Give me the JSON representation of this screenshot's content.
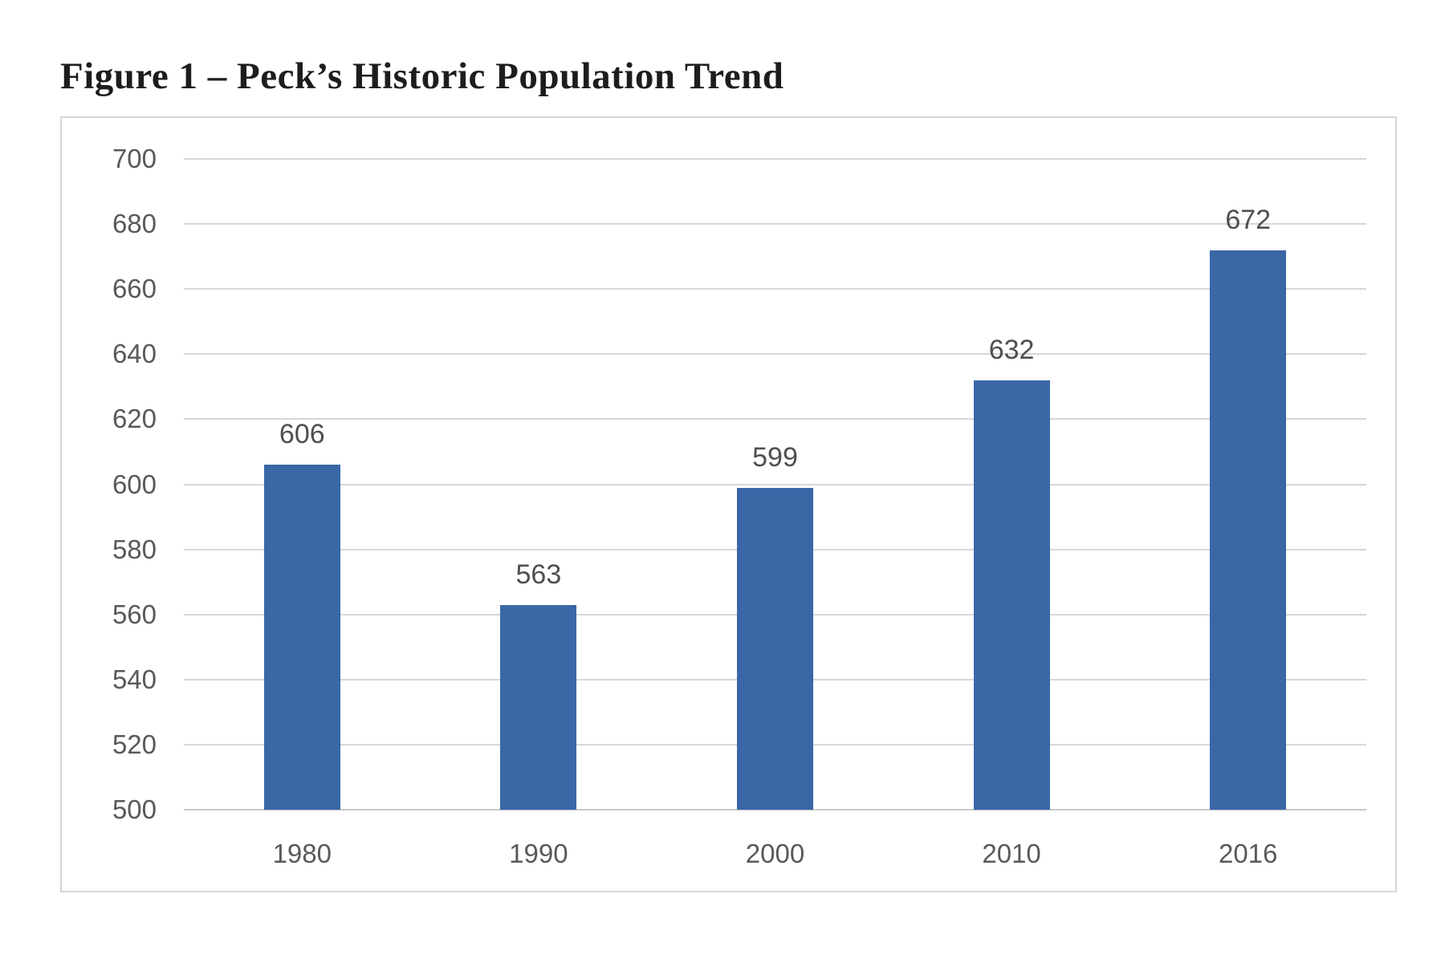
{
  "page": {
    "figure_title": "Figure 1 – Peck’s Historic Population Trend"
  },
  "chart_data": {
    "type": "bar",
    "title": "Figure 1 – Peck’s Historic Population Trend",
    "categories": [
      "1980",
      "1990",
      "2000",
      "2010",
      "2016"
    ],
    "values": [
      606,
      563,
      599,
      632,
      672
    ],
    "data_labels": [
      "606",
      "563",
      "599",
      "632",
      "672"
    ],
    "xlabel": "",
    "ylabel": "",
    "ylim": [
      500,
      700
    ],
    "yticks": [
      500,
      520,
      540,
      560,
      580,
      600,
      620,
      640,
      660,
      680,
      700
    ],
    "grid": true,
    "legend": "none",
    "bar_color": "#3a67a6",
    "gridline_color": "#d7d7d7",
    "axis_text_color": "#595959",
    "data_label_color": "#4f4f4f"
  }
}
